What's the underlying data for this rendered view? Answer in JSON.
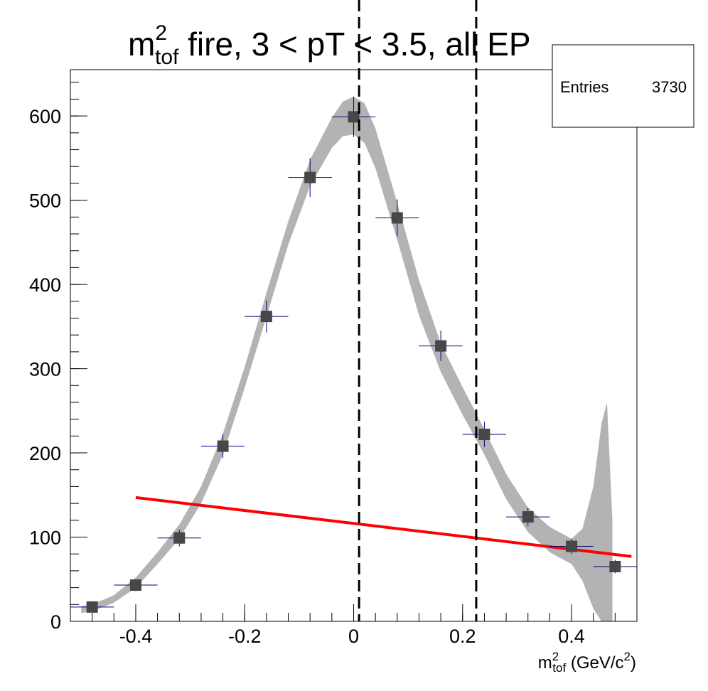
{
  "chart_data": {
    "type": "scatter",
    "title": {
      "main": "m",
      "sup": "2",
      "sub": "tof",
      "rest": " fire, 3 < pT < 3.5, all EP"
    },
    "xlabel": {
      "main": "m",
      "sup": "2",
      "sub": "tof",
      "rest": " (GeV/c",
      "unit_sup": "2",
      "close": ")"
    },
    "ylabel": "",
    "xlim": [
      -0.52,
      0.52
    ],
    "ylim": [
      0,
      655
    ],
    "x_ticks": [
      {
        "value": -0.4,
        "label": "-0.4"
      },
      {
        "value": -0.2,
        "label": "-0.2"
      },
      {
        "value": 0,
        "label": "0"
      },
      {
        "value": 0.2,
        "label": "0.2"
      },
      {
        "value": 0.4,
        "label": "0.4"
      }
    ],
    "y_ticks": [
      {
        "value": 0,
        "label": "0"
      },
      {
        "value": 100,
        "label": "100"
      },
      {
        "value": 200,
        "label": "200"
      },
      {
        "value": 300,
        "label": "300"
      },
      {
        "value": 400,
        "label": "400"
      },
      {
        "value": 500,
        "label": "500"
      },
      {
        "value": 600,
        "label": "600"
      }
    ],
    "points": [
      {
        "x": -0.48,
        "y": 17,
        "xerr": 0.04,
        "yerr": 4
      },
      {
        "x": -0.4,
        "y": 43,
        "xerr": 0.04,
        "yerr": 7
      },
      {
        "x": -0.32,
        "y": 99,
        "xerr": 0.04,
        "yerr": 10
      },
      {
        "x": -0.24,
        "y": 208,
        "xerr": 0.04,
        "yerr": 14
      },
      {
        "x": -0.16,
        "y": 362,
        "xerr": 0.04,
        "yerr": 19
      },
      {
        "x": -0.08,
        "y": 527,
        "xerr": 0.04,
        "yerr": 23
      },
      {
        "x": 0.0,
        "y": 599,
        "xerr": 0.04,
        "yerr": 24
      },
      {
        "x": 0.08,
        "y": 479,
        "xerr": 0.04,
        "yerr": 22
      },
      {
        "x": 0.16,
        "y": 327,
        "xerr": 0.04,
        "yerr": 18
      },
      {
        "x": 0.24,
        "y": 222,
        "xerr": 0.04,
        "yerr": 15
      },
      {
        "x": 0.32,
        "y": 124,
        "xerr": 0.04,
        "yerr": 11
      },
      {
        "x": 0.4,
        "y": 89,
        "xerr": 0.04,
        "yerr": 9
      },
      {
        "x": 0.48,
        "y": 65,
        "xerr": 0.04,
        "yerr": 8
      }
    ],
    "fit_band": {
      "color": "#b3b3b3",
      "x": [
        -0.5,
        -0.48,
        -0.44,
        -0.4,
        -0.36,
        -0.32,
        -0.28,
        -0.24,
        -0.2,
        -0.16,
        -0.12,
        -0.08,
        -0.04,
        -0.02,
        0.0,
        0.02,
        0.04,
        0.08,
        0.12,
        0.16,
        0.2,
        0.24,
        0.28,
        0.32,
        0.36,
        0.4,
        0.42,
        0.44,
        0.455,
        0.465,
        0.475
      ],
      "upper": [
        18,
        20,
        31,
        52,
        82,
        115,
        160,
        223,
        302,
        390,
        475,
        548,
        598,
        617,
        623,
        615,
        585,
        497,
        405,
        330,
        278,
        228,
        175,
        135,
        112,
        98,
        110,
        160,
        235,
        260,
        120
      ],
      "lower": [
        10,
        12,
        22,
        40,
        68,
        98,
        140,
        198,
        277,
        362,
        447,
        517,
        562,
        576,
        578,
        568,
        538,
        453,
        363,
        296,
        245,
        198,
        145,
        106,
        82,
        68,
        48,
        15,
        0,
        0,
        0
      ]
    },
    "background_line": {
      "color": "#ff0000",
      "x": [
        -0.4,
        0.51
      ],
      "y": [
        147,
        77
      ]
    },
    "vertical_lines": [
      {
        "x": 0.01,
        "style": "dashed",
        "color": "#000000"
      },
      {
        "x": 0.225,
        "style": "dashed",
        "color": "#000000"
      }
    ],
    "marker_color": "#474747",
    "error_color": "#00007f",
    "stats": {
      "label": "Entries",
      "value": "3730"
    }
  }
}
